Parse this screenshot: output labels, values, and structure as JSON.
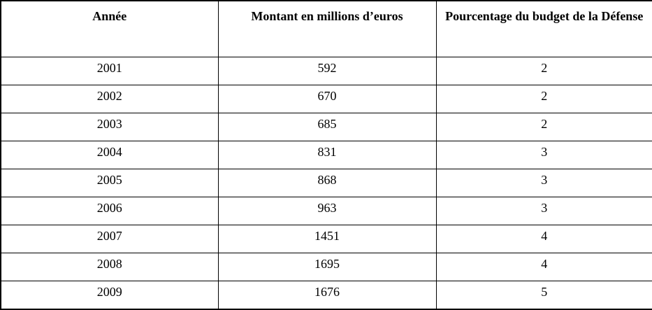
{
  "table": {
    "columns": [
      "Année",
      "Montant en millions d’euros",
      "Pourcentage du budget de la Défense"
    ],
    "rows": [
      [
        "2001",
        "592",
        "2"
      ],
      [
        "2002",
        "670",
        "2"
      ],
      [
        "2003",
        "685",
        "2"
      ],
      [
        "2004",
        "831",
        "3"
      ],
      [
        "2005",
        "868",
        "3"
      ],
      [
        "2006",
        "963",
        "3"
      ],
      [
        "2007",
        "1451",
        "4"
      ],
      [
        "2008",
        "1695",
        "4"
      ],
      [
        "2009",
        "1676",
        "5"
      ]
    ]
  },
  "colors": {
    "border": "#000000",
    "text": "#000000",
    "background": "#ffffff"
  }
}
